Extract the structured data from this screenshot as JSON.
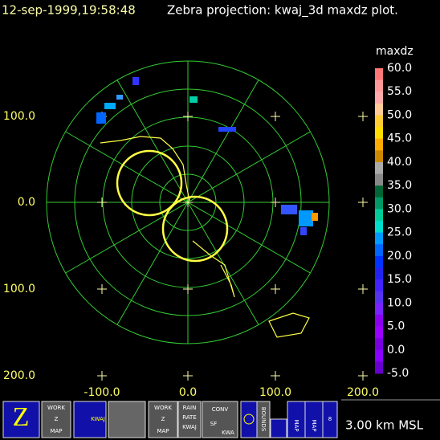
{
  "header": {
    "timestamp": "12-sep-1999,19:58:48",
    "title": "Zebra projection: kwaj_3d maxdz plot."
  },
  "plot": {
    "y_labels": [
      "100.0",
      "0.0",
      "100.0",
      "200.0"
    ],
    "x_labels": [
      "-100.0",
      "0.0",
      "100.0",
      "200.0"
    ]
  },
  "colorbar": {
    "title": "maxdz",
    "labels": [
      "60.0",
      "55.0",
      "50.0",
      "45.0",
      "40.0",
      "35.0",
      "30.0",
      "25.0",
      "20.0",
      "15.0",
      "10.0",
      "5.0",
      "0.0",
      "-5.0"
    ]
  },
  "toolbar": {
    "work_map_1": [
      "WORK",
      "Z",
      "MAP"
    ],
    "kwaj": "KWAJ",
    "work_map_2": [
      "WORK",
      "Z",
      "MAP"
    ],
    "rain_rate": [
      "RAIN",
      "RATE",
      "KWAJ"
    ],
    "conv": [
      "CONV",
      "SF",
      "KWA"
    ],
    "bounds": "BOUNDS",
    "map_1": "MAP",
    "map_2": "MAP",
    "altitude": "3.00 km MSL"
  }
}
